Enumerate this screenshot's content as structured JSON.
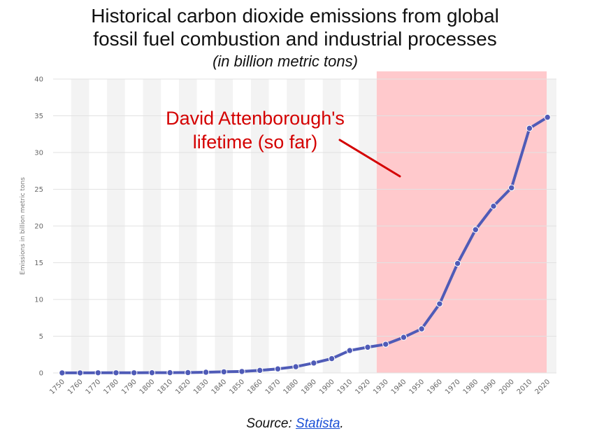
{
  "chart_data": {
    "type": "line",
    "title": "Historical carbon dioxide emissions from global\nfossil fuel combustion and industrial processes",
    "subtitle": "(in billion metric tons)",
    "ylabel": "Emissions in billion metric tons",
    "xlabel": "",
    "x": [
      "1750",
      "1760",
      "1770",
      "1780",
      "1790",
      "1800",
      "1810",
      "1820",
      "1830",
      "1840",
      "1850",
      "1860",
      "1870",
      "1880",
      "1890",
      "1900",
      "1910",
      "1920",
      "1930",
      "1940",
      "1950",
      "1960",
      "1970",
      "1980",
      "1990",
      "2000",
      "2010",
      "2020"
    ],
    "series": [
      {
        "values": [
          0.01,
          0.01,
          0.02,
          0.02,
          0.02,
          0.03,
          0.04,
          0.05,
          0.1,
          0.15,
          0.2,
          0.35,
          0.55,
          0.85,
          1.35,
          1.95,
          3.05,
          3.5,
          3.9,
          4.85,
          6.0,
          9.4,
          14.9,
          19.5,
          22.7,
          25.2,
          33.3,
          34.8
        ]
      }
    ],
    "ylim": [
      0,
      40
    ],
    "yticks": [
      0,
      5,
      10,
      15,
      20,
      25,
      30,
      35,
      40
    ],
    "grid": true,
    "highlight_range": [
      "1925",
      "2020"
    ],
    "annotation": "David Attenborough's\nlifetime (so far)",
    "colors": {
      "line": "#4f5bb7",
      "highlight": "#ffc9cc",
      "annotation": "#d40000"
    }
  },
  "source": {
    "prefix": "Source: ",
    "link_text": "Statista",
    "suffix": "."
  }
}
